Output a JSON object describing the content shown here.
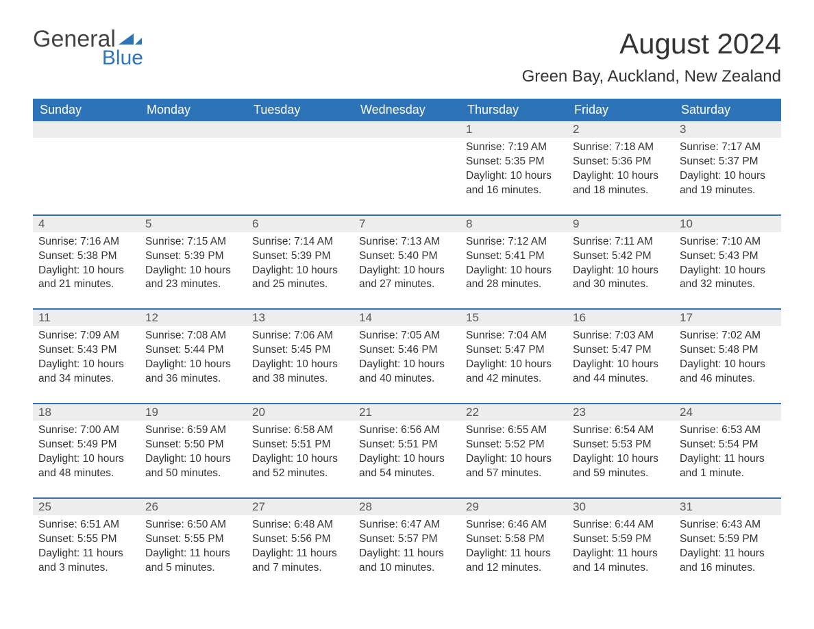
{
  "logo": {
    "text_main": "General",
    "text_sub": "Blue"
  },
  "title": "August 2024",
  "location": "Green Bay, Auckland, New Zealand",
  "colors": {
    "header_bg": "#2d73b8",
    "header_text": "#ffffff",
    "daynum_bg": "#ededed",
    "body_text": "#333333",
    "border": "#2d73b8",
    "page_bg": "#ffffff"
  },
  "weekdays": [
    "Sunday",
    "Monday",
    "Tuesday",
    "Wednesday",
    "Thursday",
    "Friday",
    "Saturday"
  ],
  "weeks": [
    [
      {
        "blank": true
      },
      {
        "blank": true
      },
      {
        "blank": true
      },
      {
        "blank": true
      },
      {
        "day": "1",
        "sunrise": "Sunrise: 7:19 AM",
        "sunset": "Sunset: 5:35 PM",
        "daylight": "Daylight: 10 hours and 16 minutes."
      },
      {
        "day": "2",
        "sunrise": "Sunrise: 7:18 AM",
        "sunset": "Sunset: 5:36 PM",
        "daylight": "Daylight: 10 hours and 18 minutes."
      },
      {
        "day": "3",
        "sunrise": "Sunrise: 7:17 AM",
        "sunset": "Sunset: 5:37 PM",
        "daylight": "Daylight: 10 hours and 19 minutes."
      }
    ],
    [
      {
        "day": "4",
        "sunrise": "Sunrise: 7:16 AM",
        "sunset": "Sunset: 5:38 PM",
        "daylight": "Daylight: 10 hours and 21 minutes."
      },
      {
        "day": "5",
        "sunrise": "Sunrise: 7:15 AM",
        "sunset": "Sunset: 5:39 PM",
        "daylight": "Daylight: 10 hours and 23 minutes."
      },
      {
        "day": "6",
        "sunrise": "Sunrise: 7:14 AM",
        "sunset": "Sunset: 5:39 PM",
        "daylight": "Daylight: 10 hours and 25 minutes."
      },
      {
        "day": "7",
        "sunrise": "Sunrise: 7:13 AM",
        "sunset": "Sunset: 5:40 PM",
        "daylight": "Daylight: 10 hours and 27 minutes."
      },
      {
        "day": "8",
        "sunrise": "Sunrise: 7:12 AM",
        "sunset": "Sunset: 5:41 PM",
        "daylight": "Daylight: 10 hours and 28 minutes."
      },
      {
        "day": "9",
        "sunrise": "Sunrise: 7:11 AM",
        "sunset": "Sunset: 5:42 PM",
        "daylight": "Daylight: 10 hours and 30 minutes."
      },
      {
        "day": "10",
        "sunrise": "Sunrise: 7:10 AM",
        "sunset": "Sunset: 5:43 PM",
        "daylight": "Daylight: 10 hours and 32 minutes."
      }
    ],
    [
      {
        "day": "11",
        "sunrise": "Sunrise: 7:09 AM",
        "sunset": "Sunset: 5:43 PM",
        "daylight": "Daylight: 10 hours and 34 minutes."
      },
      {
        "day": "12",
        "sunrise": "Sunrise: 7:08 AM",
        "sunset": "Sunset: 5:44 PM",
        "daylight": "Daylight: 10 hours and 36 minutes."
      },
      {
        "day": "13",
        "sunrise": "Sunrise: 7:06 AM",
        "sunset": "Sunset: 5:45 PM",
        "daylight": "Daylight: 10 hours and 38 minutes."
      },
      {
        "day": "14",
        "sunrise": "Sunrise: 7:05 AM",
        "sunset": "Sunset: 5:46 PM",
        "daylight": "Daylight: 10 hours and 40 minutes."
      },
      {
        "day": "15",
        "sunrise": "Sunrise: 7:04 AM",
        "sunset": "Sunset: 5:47 PM",
        "daylight": "Daylight: 10 hours and 42 minutes."
      },
      {
        "day": "16",
        "sunrise": "Sunrise: 7:03 AM",
        "sunset": "Sunset: 5:47 PM",
        "daylight": "Daylight: 10 hours and 44 minutes."
      },
      {
        "day": "17",
        "sunrise": "Sunrise: 7:02 AM",
        "sunset": "Sunset: 5:48 PM",
        "daylight": "Daylight: 10 hours and 46 minutes."
      }
    ],
    [
      {
        "day": "18",
        "sunrise": "Sunrise: 7:00 AM",
        "sunset": "Sunset: 5:49 PM",
        "daylight": "Daylight: 10 hours and 48 minutes."
      },
      {
        "day": "19",
        "sunrise": "Sunrise: 6:59 AM",
        "sunset": "Sunset: 5:50 PM",
        "daylight": "Daylight: 10 hours and 50 minutes."
      },
      {
        "day": "20",
        "sunrise": "Sunrise: 6:58 AM",
        "sunset": "Sunset: 5:51 PM",
        "daylight": "Daylight: 10 hours and 52 minutes."
      },
      {
        "day": "21",
        "sunrise": "Sunrise: 6:56 AM",
        "sunset": "Sunset: 5:51 PM",
        "daylight": "Daylight: 10 hours and 54 minutes."
      },
      {
        "day": "22",
        "sunrise": "Sunrise: 6:55 AM",
        "sunset": "Sunset: 5:52 PM",
        "daylight": "Daylight: 10 hours and 57 minutes."
      },
      {
        "day": "23",
        "sunrise": "Sunrise: 6:54 AM",
        "sunset": "Sunset: 5:53 PM",
        "daylight": "Daylight: 10 hours and 59 minutes."
      },
      {
        "day": "24",
        "sunrise": "Sunrise: 6:53 AM",
        "sunset": "Sunset: 5:54 PM",
        "daylight": "Daylight: 11 hours and 1 minute."
      }
    ],
    [
      {
        "day": "25",
        "sunrise": "Sunrise: 6:51 AM",
        "sunset": "Sunset: 5:55 PM",
        "daylight": "Daylight: 11 hours and 3 minutes."
      },
      {
        "day": "26",
        "sunrise": "Sunrise: 6:50 AM",
        "sunset": "Sunset: 5:55 PM",
        "daylight": "Daylight: 11 hours and 5 minutes."
      },
      {
        "day": "27",
        "sunrise": "Sunrise: 6:48 AM",
        "sunset": "Sunset: 5:56 PM",
        "daylight": "Daylight: 11 hours and 7 minutes."
      },
      {
        "day": "28",
        "sunrise": "Sunrise: 6:47 AM",
        "sunset": "Sunset: 5:57 PM",
        "daylight": "Daylight: 11 hours and 10 minutes."
      },
      {
        "day": "29",
        "sunrise": "Sunrise: 6:46 AM",
        "sunset": "Sunset: 5:58 PM",
        "daylight": "Daylight: 11 hours and 12 minutes."
      },
      {
        "day": "30",
        "sunrise": "Sunrise: 6:44 AM",
        "sunset": "Sunset: 5:59 PM",
        "daylight": "Daylight: 11 hours and 14 minutes."
      },
      {
        "day": "31",
        "sunrise": "Sunrise: 6:43 AM",
        "sunset": "Sunset: 5:59 PM",
        "daylight": "Daylight: 11 hours and 16 minutes."
      }
    ]
  ]
}
